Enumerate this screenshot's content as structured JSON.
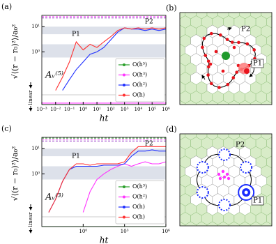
{
  "chart_data": [
    {
      "type": "line",
      "panel_label": "(a)",
      "y_label": "√⟨(r − r₀)²⟩/a₀²",
      "y_note": "linear",
      "x_label": "ht",
      "annotations": [
        "P1",
        "P2",
        "Aᵥ⁽⁵⁾"
      ],
      "xscale": "log",
      "yscale": "symlog",
      "x": [
        0.001,
        0.00316,
        0.01,
        0.0316,
        0.1,
        0.316,
        1,
        3.16,
        10,
        31.6,
        100,
        316,
        1000,
        3162,
        10000,
        31623,
        100000,
        316228,
        1000000
      ],
      "xlim": [
        0.001,
        1000000
      ],
      "xticks": [
        {
          "value": 0.001,
          "label": "10⁻³"
        },
        {
          "value": 0.01,
          "label": "10⁻²"
        },
        {
          "value": 0.1,
          "label": "10⁻¹"
        },
        {
          "value": 1,
          "label": "10⁰"
        },
        {
          "value": 10,
          "label": "10¹"
        },
        {
          "value": 100,
          "label": "10²"
        },
        {
          "value": 1000,
          "label": "10³"
        },
        {
          "value": 10000,
          "label": "10⁴"
        },
        {
          "value": 100000,
          "label": "10⁵"
        },
        {
          "value": 1000000,
          "label": "10⁶"
        }
      ],
      "ylim": [
        0,
        28
      ],
      "yticks": [
        {
          "value": 1,
          "label": "10⁰"
        },
        {
          "value": 10,
          "label": "10¹"
        }
      ],
      "shaded_bands": [
        [
          5,
          10
        ],
        [
          0.6,
          2
        ]
      ],
      "reference_lines": [
        {
          "value": 25,
          "color": "#ff55ff"
        },
        {
          "value": 22,
          "color": "#9a3fc9"
        }
      ],
      "series": [
        {
          "name": "O(h⁵)",
          "color": "#2ca02c",
          "values": [
            0,
            0,
            0,
            0,
            0,
            0,
            0,
            0,
            0,
            0,
            0,
            0,
            0,
            0,
            0,
            0,
            0,
            0,
            0
          ]
        },
        {
          "name": "O(h³)",
          "color": "#ff33ff",
          "values": [
            0.003,
            0.003,
            0.003,
            0.003,
            0.003,
            0.003,
            0.003,
            0.003,
            0.003,
            0.003,
            0.003,
            0.003,
            0.003,
            0.003,
            0.003,
            0.003,
            0.003,
            0.003,
            0.003
          ]
        },
        {
          "name": "O(h²)",
          "color": "#2030ff",
          "values": [
            null,
            null,
            null,
            0.03,
            0.08,
            0.2,
            0.4,
            0.8,
            1,
            1.5,
            3,
            6,
            9,
            8,
            8,
            7,
            8,
            7,
            8
          ]
        },
        {
          "name": "O(h)",
          "color": "#ff3030",
          "values": [
            null,
            null,
            0.03,
            0.1,
            0.4,
            2.5,
            1.2,
            2,
            1.5,
            2.5,
            4,
            7,
            9,
            8,
            9,
            8,
            9,
            8,
            9
          ]
        }
      ]
    },
    {
      "type": "line",
      "panel_label": "(c)",
      "y_label": "√⟨(r − r₀)²⟩/a₀²",
      "y_note": "linear",
      "x_label": "ht",
      "annotations": [
        "P1",
        "P2",
        "Aᵥ⁽³⁾"
      ],
      "xscale": "log",
      "yscale": "symlog",
      "x": [
        0.001,
        0.00316,
        0.01,
        0.0316,
        0.1,
        0.316,
        1,
        3.16,
        10,
        31.6,
        100,
        316,
        1000,
        3162,
        10000,
        31623,
        100000,
        316228,
        1000000
      ],
      "xlim": [
        0.001,
        1000000
      ],
      "xticks": [
        {
          "value": 1,
          "label": "10⁰"
        },
        {
          "value": 1000,
          "label": "10³"
        },
        {
          "value": 1000000,
          "label": "10⁶"
        }
      ],
      "ylim": [
        0,
        28
      ],
      "yticks": [
        {
          "value": 1,
          "label": "10⁰"
        },
        {
          "value": 10,
          "label": "10¹"
        }
      ],
      "shaded_bands": [
        [
          5,
          10
        ],
        [
          0.6,
          2
        ]
      ],
      "reference_lines": [
        {
          "value": 26,
          "color": "#2ca02c"
        },
        {
          "value": 23,
          "color": "#ff55ff"
        },
        {
          "value": 20,
          "color": "#9a3fc9"
        }
      ],
      "series": [
        {
          "name": "O(h³)",
          "color": "#2ca02c",
          "values": [
            0,
            0,
            0,
            0,
            0,
            0,
            0,
            0,
            0,
            0,
            0,
            0,
            0,
            0,
            0,
            0,
            0,
            0,
            0
          ]
        },
        {
          "name": "O(h²)",
          "color": "#ff33ff",
          "values": [
            null,
            null,
            null,
            null,
            null,
            null,
            0.03,
            0.2,
            0.6,
            1,
            1.5,
            2,
            2.5,
            2,
            2.5,
            3,
            2.5,
            2.5,
            3
          ]
        },
        {
          "name": "O(h)",
          "color": "#2030ff",
          "values": [
            null,
            0.03,
            0.1,
            0.5,
            1.5,
            2,
            2,
            2,
            2,
            2.2,
            2.2,
            2.2,
            2.5,
            5,
            8,
            8,
            9,
            8,
            8
          ]
        },
        {
          "name": "O(h)",
          "color": "#ff3030",
          "values": [
            null,
            0.03,
            0.1,
            0.5,
            1.5,
            2.5,
            2.5,
            2.2,
            2.5,
            2.5,
            2.5,
            2.5,
            3,
            7,
            12,
            12,
            12,
            12,
            12
          ]
        }
      ]
    }
  ],
  "diagrams": [
    {
      "label": "(b)",
      "annotations": [
        "P2",
        "P1"
      ]
    },
    {
      "label": "(d)",
      "annotations": [
        "P2",
        "P1"
      ]
    }
  ]
}
